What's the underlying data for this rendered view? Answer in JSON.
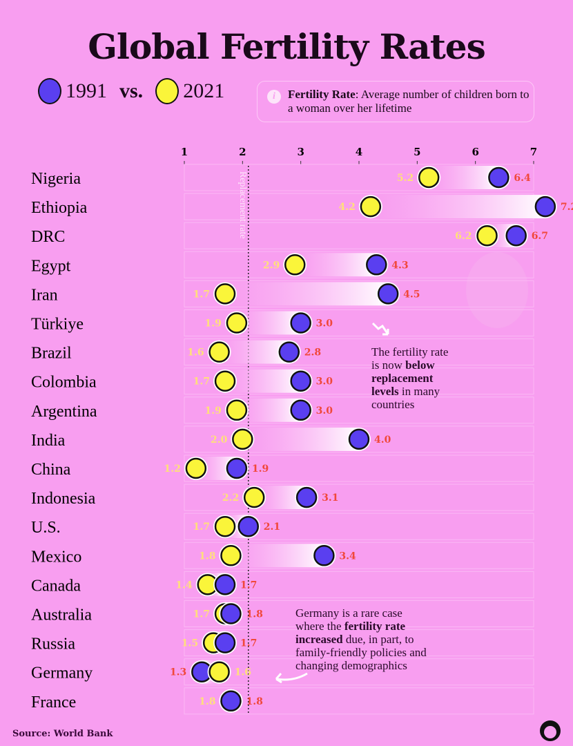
{
  "title": "Global Fertility Rates",
  "legend": {
    "y1991": "1991",
    "vs": "vs.",
    "y2021": "2021"
  },
  "info": {
    "term": "Fertility Rate",
    "definition": ": Average number of children born to a woman over her lifetime"
  },
  "colors": {
    "c1991": "#5a3ff0",
    "c2021": "#faf53a",
    "label1991": "#f0483a",
    "label2021": "#ffe07a",
    "background": "#f89ef0"
  },
  "chart_data": {
    "type": "dumbbell",
    "title": "Global Fertility Rates",
    "xlabel": "",
    "xlim": [
      1,
      7
    ],
    "xticks": [
      1,
      2,
      3,
      4,
      5,
      6,
      7
    ],
    "reference_line": {
      "value": 2.1,
      "label": "Replacement rate"
    },
    "categories": [
      "Nigeria",
      "Ethiopia",
      "DRC",
      "Egypt",
      "Iran",
      "Türkiye",
      "Brazil",
      "Colombia",
      "Argentina",
      "India",
      "China",
      "Indonesia",
      "U.S.",
      "Mexico",
      "Canada",
      "Australia",
      "Russia",
      "Germany",
      "France"
    ],
    "series": [
      {
        "name": "1991",
        "values": [
          6.4,
          7.2,
          6.7,
          4.3,
          4.5,
          3.0,
          2.8,
          3.0,
          3.0,
          4.0,
          1.9,
          3.1,
          2.1,
          3.4,
          1.7,
          1.8,
          1.7,
          1.3,
          1.8
        ]
      },
      {
        "name": "2021",
        "values": [
          5.2,
          4.2,
          6.2,
          2.9,
          1.7,
          1.9,
          1.6,
          1.7,
          1.9,
          2.0,
          1.2,
          2.2,
          1.7,
          1.8,
          1.4,
          1.7,
          1.5,
          1.6,
          1.8
        ]
      }
    ]
  },
  "annotations": {
    "below": [
      "The fertility rate",
      "is now ",
      "below",
      "replacement",
      "levels",
      " in many",
      "countries"
    ],
    "germany": [
      "Germany is a rare case",
      "where the ",
      "fertility rate",
      "increased",
      " due, in part, to",
      "family-friendly policies and",
      "changing demographics"
    ]
  },
  "source": "Source: World Bank"
}
